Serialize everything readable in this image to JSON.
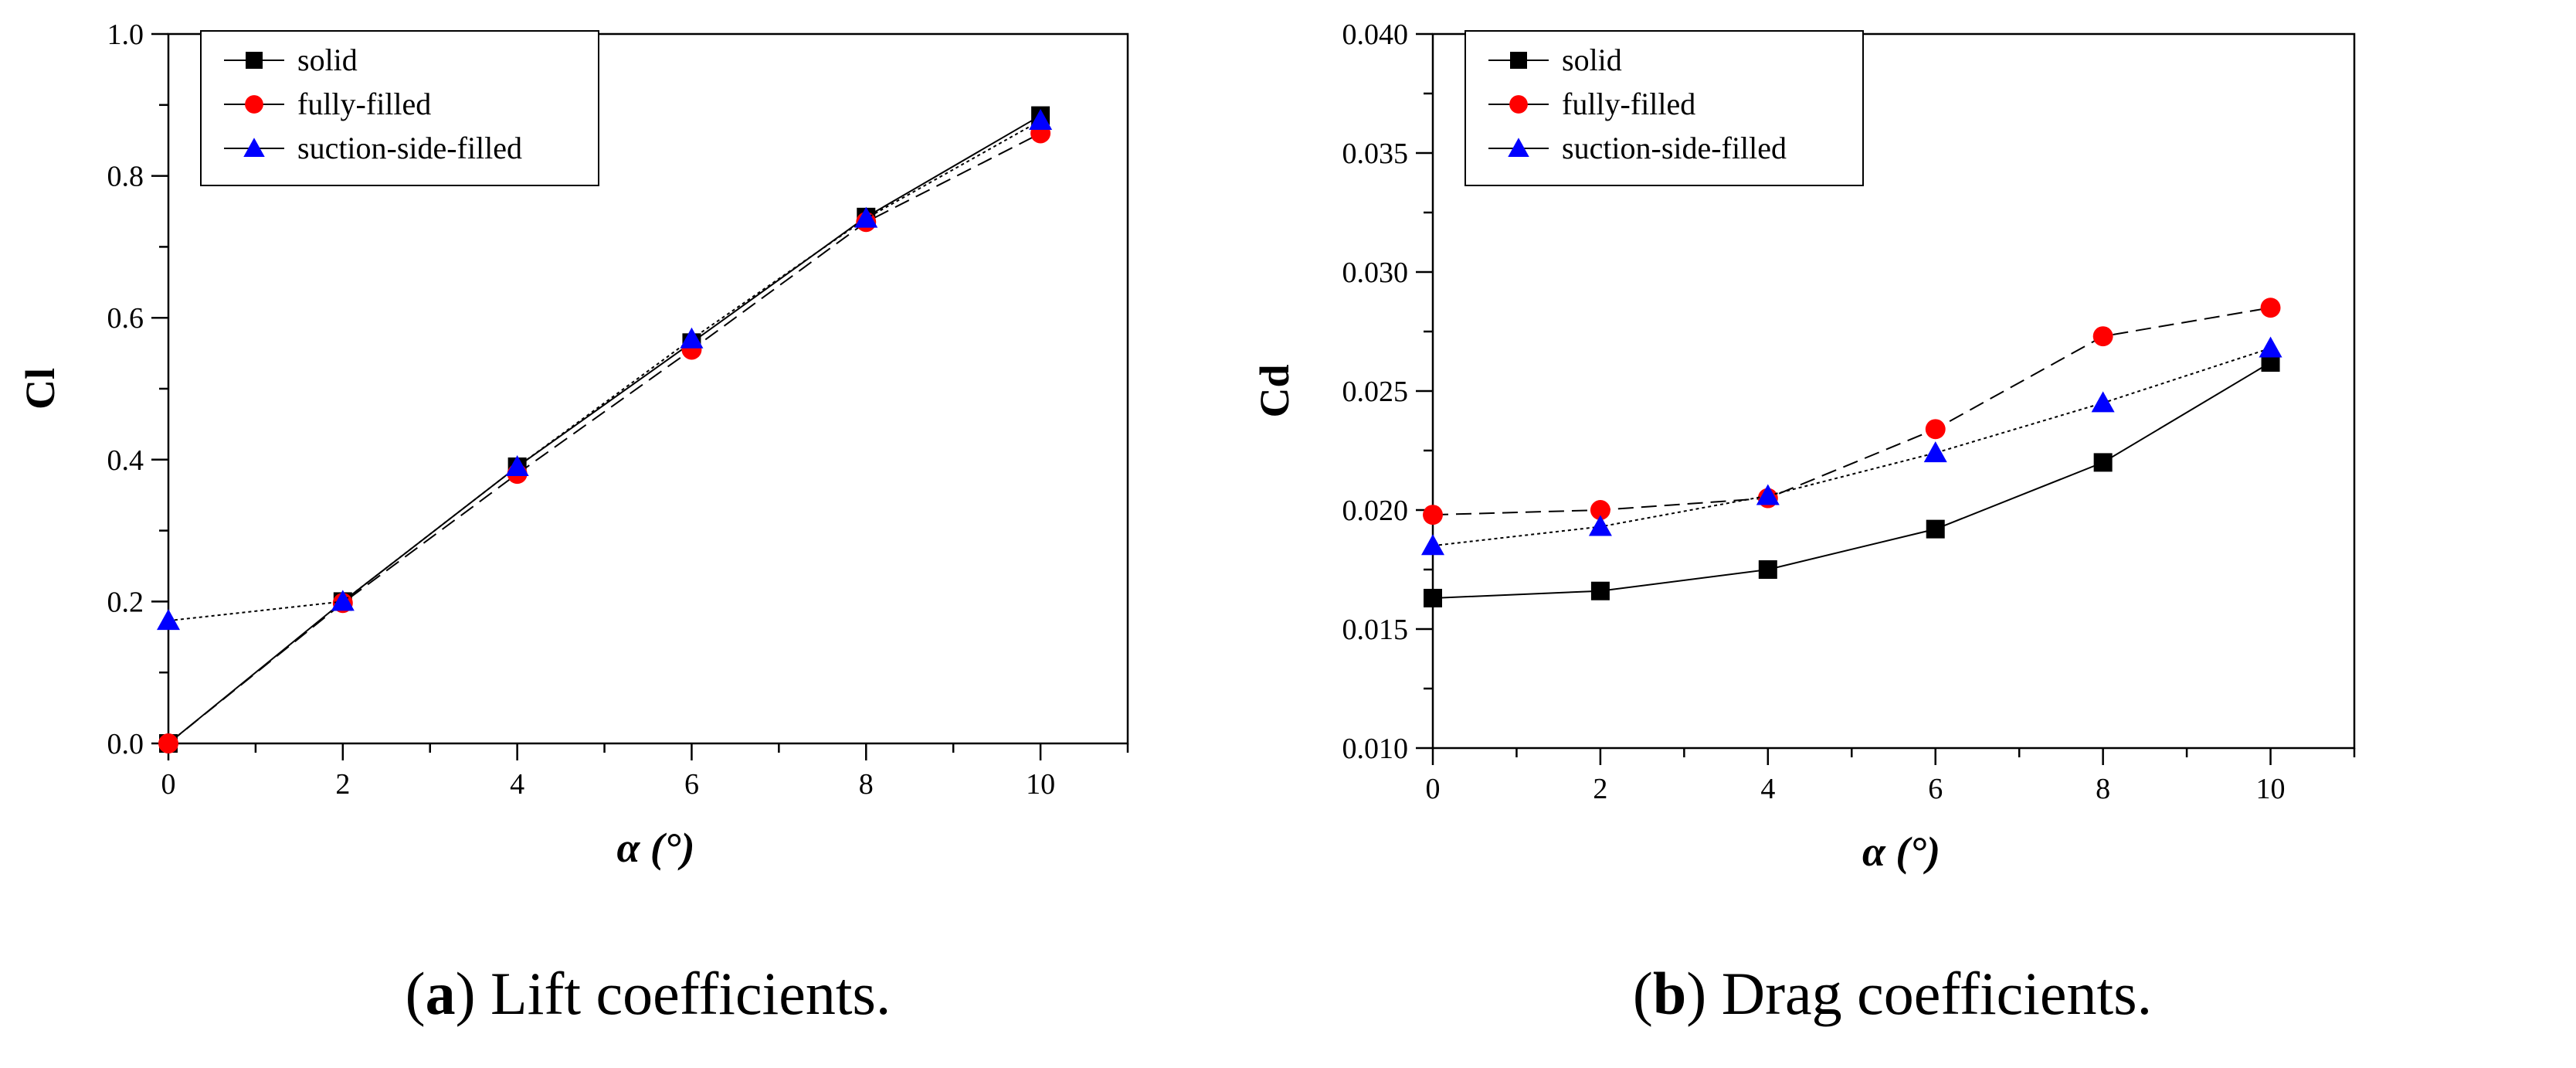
{
  "figures": [
    {
      "caption_prefix": "(",
      "caption_letter": "a",
      "caption_suffix": ") Lift coefficients.",
      "chart_data": {
        "type": "line",
        "title": "",
        "xlabel": "α (°)",
        "ylabel": "Cl",
        "xlim": [
          0,
          11
        ],
        "ylim": [
          0.0,
          1.0
        ],
        "x_ticks": [
          0,
          2,
          4,
          6,
          8,
          10
        ],
        "x_tick_labels": [
          "0",
          "2",
          "4",
          "6",
          "8",
          "10"
        ],
        "y_ticks": [
          0.0,
          0.2,
          0.4,
          0.6,
          0.8,
          1.0
        ],
        "y_tick_labels": [
          "0.0",
          "0.2",
          "0.4",
          "0.6",
          "0.8",
          "1.0"
        ],
        "grid": false,
        "legend_position": "top-left",
        "series": [
          {
            "name": "solid",
            "marker": "square",
            "color": "#000000",
            "x": [
              0,
              2,
              4,
              6,
              8,
              10
            ],
            "values": [
              0.0,
              0.2,
              0.39,
              0.565,
              0.742,
              0.885
            ]
          },
          {
            "name": "fully-filled",
            "marker": "circle",
            "color": "#ff0000",
            "x": [
              0,
              2,
              4,
              6,
              8,
              10
            ],
            "values": [
              0.0,
              0.198,
              0.38,
              0.555,
              0.735,
              0.86
            ]
          },
          {
            "name": "suction-side-filled",
            "marker": "triangle",
            "color": "#0000ff",
            "x": [
              0,
              2,
              4,
              6,
              8,
              10
            ],
            "values": [
              0.173,
              0.2,
              0.39,
              0.57,
              0.74,
              0.878
            ]
          }
        ]
      }
    },
    {
      "caption_prefix": "(",
      "caption_letter": "b",
      "caption_suffix": ") Drag coefficients.",
      "chart_data": {
        "type": "line",
        "title": "",
        "xlabel": "α (°)",
        "ylabel": "Cd",
        "xlim": [
          0,
          11
        ],
        "ylim": [
          0.01,
          0.04
        ],
        "x_ticks": [
          0,
          2,
          4,
          6,
          8,
          10
        ],
        "x_tick_labels": [
          "0",
          "2",
          "4",
          "6",
          "8",
          "10"
        ],
        "y_ticks": [
          0.01,
          0.015,
          0.02,
          0.025,
          0.03,
          0.035,
          0.04
        ],
        "y_tick_labels": [
          "0.010",
          "0.015",
          "0.020",
          "0.025",
          "0.030",
          "0.035",
          "0.040"
        ],
        "grid": false,
        "legend_position": "top-left",
        "series": [
          {
            "name": "solid",
            "marker": "square",
            "color": "#000000",
            "x": [
              0,
              2,
              4,
              6,
              8,
              10
            ],
            "values": [
              0.0163,
              0.0166,
              0.0175,
              0.0192,
              0.022,
              0.0262
            ]
          },
          {
            "name": "fully-filled",
            "marker": "circle",
            "color": "#ff0000",
            "x": [
              0,
              2,
              4,
              6,
              8,
              10
            ],
            "values": [
              0.0198,
              0.02,
              0.0205,
              0.0234,
              0.0273,
              0.0285
            ]
          },
          {
            "name": "suction-side-filled",
            "marker": "triangle",
            "color": "#0000ff",
            "x": [
              0,
              2,
              4,
              6,
              8,
              10
            ],
            "values": [
              0.0185,
              0.0193,
              0.0206,
              0.0224,
              0.0245,
              0.0268
            ]
          }
        ]
      }
    }
  ]
}
